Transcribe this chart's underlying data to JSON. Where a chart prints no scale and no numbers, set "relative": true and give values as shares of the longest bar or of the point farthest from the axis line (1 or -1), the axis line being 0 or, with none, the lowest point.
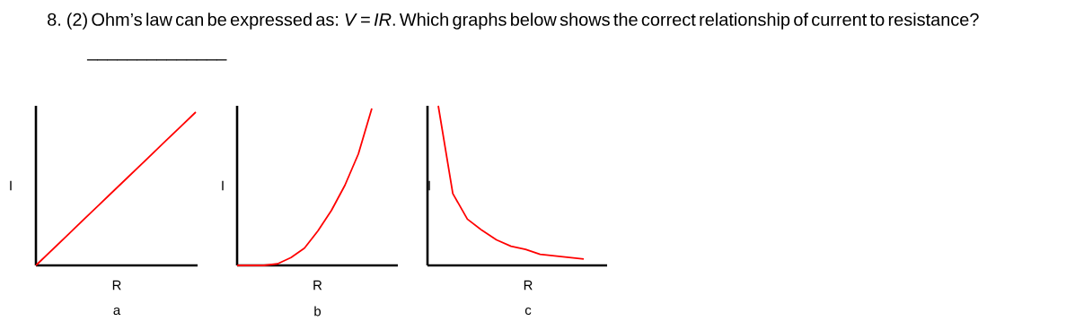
{
  "chart_data": [
    {
      "type": "line",
      "title": "8. (2) Ohm’s law can be expressed as: *V* = *IR*. Which graphs below shows the correct relationship of current to resistance? ______________",
      "relative": true,
      "xlabel": "R",
      "ylabel": "I",
      "annotations": [
        "a"
      ],
      "categories": [
        null,
        null,
        null,
        null,
        null,
        null,
        null,
        null,
        null,
        null,
        null
      ],
      "series": [
        {
          "color": "#ff0000",
          "values": [
            0,
            0.1,
            0.2,
            0.3,
            0.4,
            0.5,
            0.6,
            0.7,
            0.8,
            0.9,
            1
          ]
        }
      ]
    },
    {
      "type": "line",
      "relative": true,
      "xlabel": "R",
      "ylabel": "I",
      "annotations": [
        "b"
      ],
      "categories": [
        null,
        null,
        null,
        null,
        null,
        null,
        null,
        null,
        null,
        null,
        null
      ],
      "series": [
        {
          "color": "#ff0000",
          "values": [
            0,
            0,
            0,
            0.01,
            0.05,
            0.11,
            0.22,
            0.35,
            0.51,
            0.71,
            1
          ]
        }
      ]
    },
    {
      "type": "line",
      "relative": true,
      "xlabel": "R",
      "ylabel": "I",
      "annotations": [
        "c"
      ],
      "categories": [
        null,
        null,
        null,
        null,
        null,
        null,
        null,
        null,
        null,
        null,
        null
      ],
      "series": [
        {
          "color": "#ff0000",
          "values": [
            1,
            0.45,
            0.29,
            0.22,
            0.16,
            0.12,
            0.1,
            0.07,
            0.06,
            0.05,
            0.04
          ]
        }
      ]
    }
  ]
}
